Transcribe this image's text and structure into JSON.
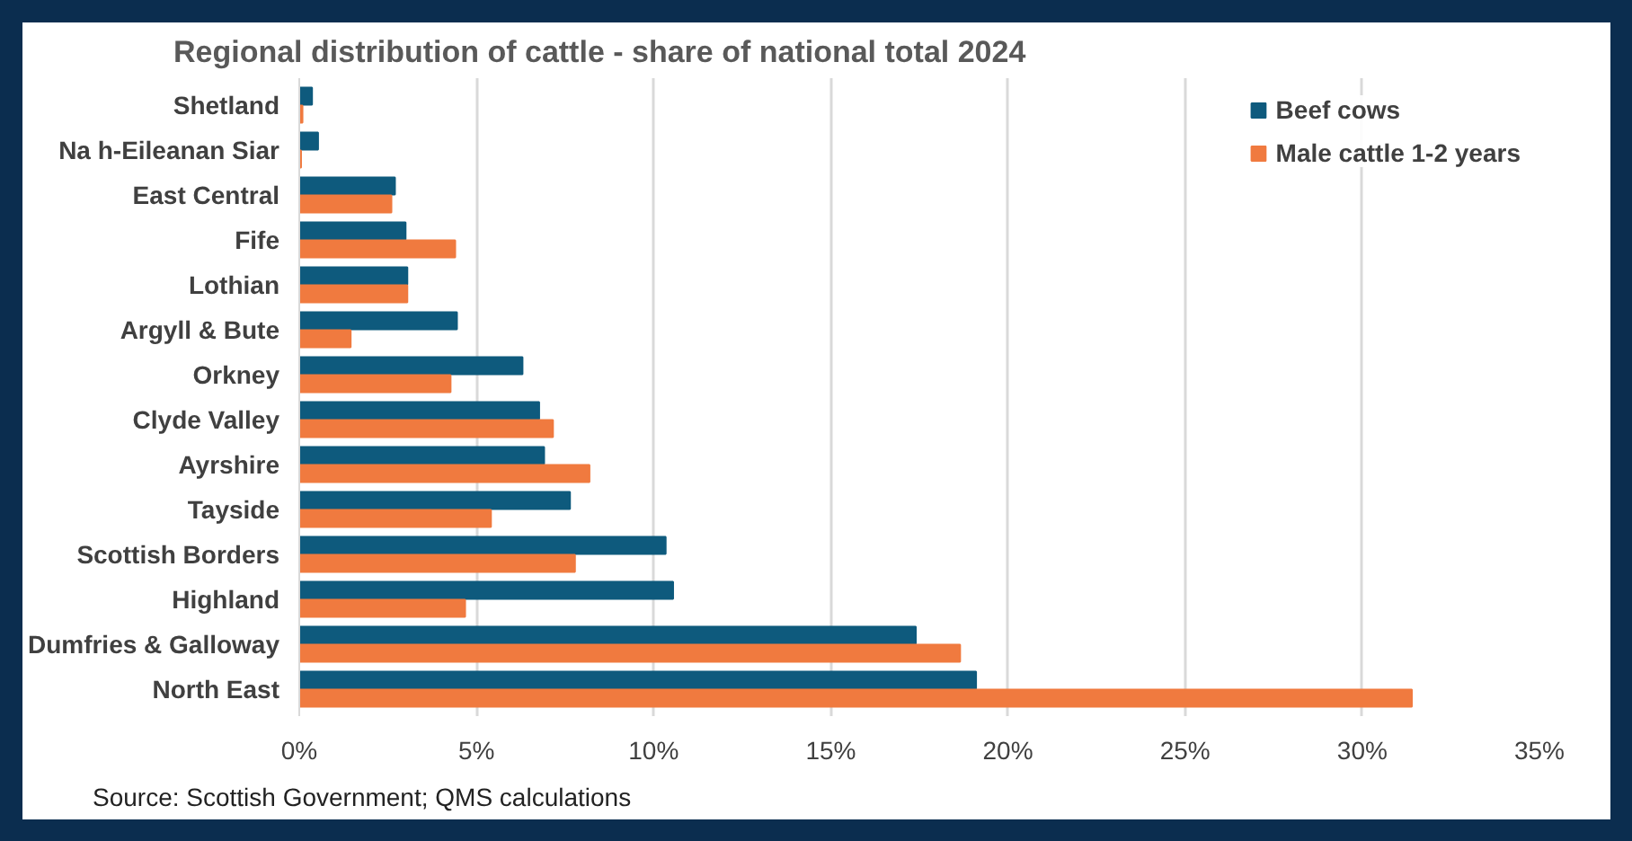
{
  "chart_data": {
    "type": "bar",
    "orientation": "horizontal",
    "title": "Regional distribution of cattle - share of national total 2024",
    "categories": [
      "Shetland",
      "Na h-Eileanan Siar",
      "East Central",
      "Fife",
      "Lothian",
      "Argyll & Bute",
      "Orkney",
      "Clyde Valley",
      "Ayrshire",
      "Tayside",
      "Scottish Borders",
      "Highland",
      "Dumfries & Galloway",
      "North East"
    ],
    "series": [
      {
        "name": "Beef cows",
        "color": "#0e5a7d",
        "values": [
          0.36,
          0.53,
          2.7,
          3.0,
          3.05,
          4.45,
          6.3,
          6.77,
          6.91,
          7.64,
          10.34,
          10.55,
          17.4,
          19.1
        ]
      },
      {
        "name": "Male cattle 1-2 years",
        "color": "#f07a3f",
        "values": [
          0.09,
          0.05,
          2.6,
          4.4,
          3.05,
          1.45,
          4.27,
          7.16,
          8.19,
          5.41,
          7.78,
          4.68,
          18.65,
          31.4
        ]
      }
    ],
    "xlim": [
      0,
      35
    ],
    "xticks": [
      {
        "value": 0,
        "label": "0%"
      },
      {
        "value": 5,
        "label": "5%"
      },
      {
        "value": 10,
        "label": "10%"
      },
      {
        "value": 15,
        "label": "15%"
      },
      {
        "value": 20,
        "label": "20%"
      },
      {
        "value": 25,
        "label": "25%"
      },
      {
        "value": 30,
        "label": "30%"
      },
      {
        "value": 35,
        "label": "35%"
      }
    ],
    "grid": "x",
    "legend": "top right",
    "annotations": [
      "Source: Scottish Government; QMS calculations"
    ]
  }
}
